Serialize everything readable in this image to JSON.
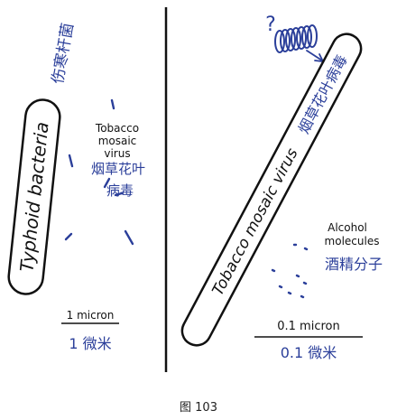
{
  "left_panel": {
    "bacteria_label": "Typhoid bacteria",
    "bacteria_label_cn": "伤寒杆菌",
    "virus_label_lines": [
      "Tobacco",
      "mosaic",
      "virus"
    ],
    "virus_label_cn_lines": [
      "烟草花叶",
      "病毒"
    ],
    "scale_label": "1 micron",
    "scale_label_cn": "1 微米"
  },
  "right_panel": {
    "question_mark": "?",
    "virus_label": "Tobacco mosaic virus",
    "virus_label_cn": "烟草花叶病毒",
    "molecules_label_lines": [
      "Alcohol",
      "molecules"
    ],
    "molecules_label_cn": "酒精分子",
    "scale_label": "0.1 micron",
    "scale_label_cn": "0.1 微米"
  },
  "caption": "图 103",
  "colors": {
    "ink": "#111111",
    "annotation_blue": "#2b3f9a"
  }
}
